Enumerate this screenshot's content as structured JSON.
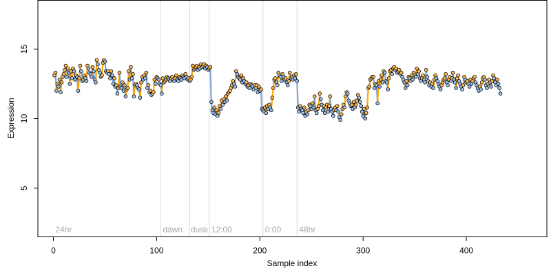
{
  "chart_data": {
    "type": "line",
    "xlabel": "Sample index",
    "ylabel": "Expression",
    "xlim": [
      -15,
      478
    ],
    "ylim": [
      1.5,
      18.5
    ],
    "x_ticks": [
      "0",
      "100",
      "200",
      "300",
      "400"
    ],
    "x_tick_values": [
      0,
      100,
      200,
      300,
      400
    ],
    "y_ticks": [
      "5",
      "10",
      "15"
    ],
    "y_tick_values": [
      5,
      10,
      15
    ],
    "grid": false,
    "vertical_lines": [
      104,
      132,
      151,
      203,
      236
    ],
    "region_labels": [
      {
        "text": "24hr",
        "x": 2
      },
      {
        "text": "dawn",
        "x": 106
      },
      {
        "text": "dusk",
        "x": 133
      },
      {
        "text": "12:00",
        "x": 153
      },
      {
        "text": "0:00",
        "x": 205
      },
      {
        "text": "48hr",
        "x": 238
      }
    ],
    "colors": {
      "line": "#a9a9a9",
      "up_segment": "#ffa500",
      "down_segment": "#7ea7d8",
      "point_edge": "#000000",
      "point_fill_up": "#ffb84d",
      "point_fill_down": "#9cc0ea",
      "vline": "#d9d9d9",
      "label": "#a9a9a9"
    },
    "series": [
      {
        "x_start": 1,
        "x_step": 1,
        "values": [
          13.1,
          13.3,
          12.0,
          12.5,
          12.3,
          12.8,
          11.9,
          12.6,
          13.0,
          13.2,
          13.5,
          13.8,
          13.0,
          13.6,
          13.3,
          12.5,
          13.4,
          12.9,
          13.6,
          13.4,
          12.8,
          13.1,
          13.0,
          12.0,
          12.9,
          13.8,
          13.4,
          12.7,
          12.8,
          13.1,
          12.9,
          12.7,
          13.8,
          13.6,
          13.3,
          13.2,
          13.0,
          13.7,
          13.4,
          12.8,
          12.6,
          14.2,
          13.9,
          13.5,
          13.3,
          13.0,
          13.1,
          14.0,
          14.2,
          14.1,
          13.4,
          13.3,
          13.4,
          13.2,
          12.9,
          13.4,
          13.1,
          12.5,
          12.9,
          12.3,
          12.4,
          11.8,
          12.2,
          13.3,
          12.3,
          12.2,
          12.6,
          12.0,
          12.4,
          11.6,
          12.1,
          12.2,
          13.4,
          12.8,
          13.7,
          12.9,
          13.2,
          11.6,
          12.4,
          12.5,
          12.4,
          12.2,
          12.1,
          11.5,
          12.6,
          13.0,
          12.8,
          13.1,
          12.9,
          13.3,
          12.2,
          12.4,
          11.9,
          12.0,
          11.7,
          11.8,
          11.9,
          12.8,
          12.5,
          13.0,
          12.9,
          12.8,
          12.5,
          12.4,
          11.8,
          12.9,
          12.6,
          12.7,
          12.8,
          13.0,
          12.9,
          12.8,
          12.7,
          12.9,
          13.0,
          12.8,
          12.7,
          12.9,
          13.1,
          12.8,
          12.7,
          13.0,
          12.9,
          12.8,
          13.1,
          13.0,
          12.9,
          13.2,
          13.0,
          12.8,
          12.9,
          12.7,
          12.8,
          13.0,
          13.8,
          13.5,
          13.6,
          13.7,
          13.8,
          13.5,
          13.7,
          13.6,
          13.9,
          13.7,
          13.8,
          13.9,
          13.6,
          13.8,
          13.7,
          13.5,
          13.6,
          13.7,
          11.2,
          10.6,
          10.4,
          10.8,
          10.3,
          10.6,
          10.2,
          10.4,
          10.9,
          10.7,
          11.3,
          11.0,
          11.4,
          11.2,
          11.6,
          11.3,
          11.8,
          11.9,
          12.0,
          12.2,
          12.4,
          12.7,
          12.5,
          12.3,
          13.4,
          13.2,
          13.0,
          12.9,
          12.8,
          13.1,
          12.6,
          12.9,
          12.7,
          12.5,
          12.6,
          12.3,
          12.4,
          12.2,
          12.5,
          12.4,
          12.3,
          12.1,
          12.4,
          12.2,
          12.4,
          11.9,
          12.3,
          12.0,
          12.1,
          10.7,
          10.6,
          10.5,
          10.8,
          10.4,
          10.9,
          10.7,
          11.0,
          10.8,
          10.6,
          11.5,
          12.2,
          12.8,
          12.9,
          12.6,
          12.4,
          13.3,
          13.1,
          13.0,
          12.7,
          13.2,
          13.0,
          12.8,
          12.9,
          12.6,
          12.4,
          12.7,
          13.3,
          12.9,
          13.0,
          12.8,
          13.1,
          12.9,
          13.2,
          12.7,
          10.8,
          10.5,
          10.9,
          10.7,
          10.6,
          10.4,
          10.8,
          10.2,
          10.5,
          10.3,
          10.6,
          11.0,
          10.9,
          10.7,
          11.1,
          10.8,
          11.6,
          10.6,
          10.4,
          10.7,
          10.9,
          11.8,
          11.4,
          11.0,
          10.6,
          10.9,
          10.4,
          10.8,
          11.0,
          10.5,
          10.9,
          11.6,
          10.7,
          10.5,
          10.2,
          10.6,
          10.8,
          10.6,
          10.9,
          10.5,
          10.1,
          9.9,
          10.3,
          10.7,
          11.0,
          10.8,
          11.6,
          11.9,
          11.8,
          11.3,
          11.1,
          10.9,
          11.0,
          10.7,
          11.2,
          10.8,
          11.0,
          11.3,
          11.7,
          11.5,
          11.2,
          10.9,
          10.5,
          10.2,
          10.7,
          10.0,
          10.4,
          10.8,
          12.2,
          12.3,
          12.8,
          12.9,
          13.0,
          13.0,
          12.2,
          12.5,
          12.4,
          11.1,
          12.7,
          12.3,
          12.8,
          13.1,
          12.6,
          13.4,
          13.3,
          12.7,
          12.6,
          12.1,
          12.9,
          13.4,
          13.5,
          13.2,
          13.6,
          13.7,
          13.5,
          13.6,
          13.3,
          13.4,
          13.5,
          13.2,
          13.3,
          13.0,
          12.8,
          12.6,
          12.2,
          12.7,
          12.4,
          13.0,
          12.9,
          12.7,
          13.1,
          12.8,
          13.3,
          13.1,
          13.0,
          13.6,
          13.2,
          13.4,
          12.9,
          12.7,
          12.9,
          13.1,
          12.8,
          12.6,
          13.5,
          13.0,
          12.7,
          12.4,
          12.6,
          12.3,
          12.5,
          12.2,
          12.8,
          13.1,
          12.9,
          12.7,
          12.5,
          12.3,
          12.1,
          12.4,
          12.6,
          12.8,
          12.9,
          13.2,
          12.6,
          12.4,
          12.8,
          13.0,
          12.7,
          12.9,
          13.3,
          12.8,
          12.6,
          12.2,
          12.9,
          13.1,
          12.7,
          12.5,
          12.3,
          12.1,
          12.4,
          13.0,
          12.8,
          12.6,
          12.7,
          12.5,
          12.3,
          12.8,
          12.5,
          12.7,
          12.9,
          13.0,
          12.6,
          12.4,
          12.2,
          12.0,
          12.3,
          12.1,
          12.6,
          12.9,
          13.0,
          12.8,
          12.4,
          12.2,
          12.5,
          12.8,
          12.6,
          12.3,
          12.7,
          13.1,
          12.9,
          12.6,
          12.4,
          12.8,
          12.5,
          12.2,
          11.8
        ]
      }
    ]
  }
}
